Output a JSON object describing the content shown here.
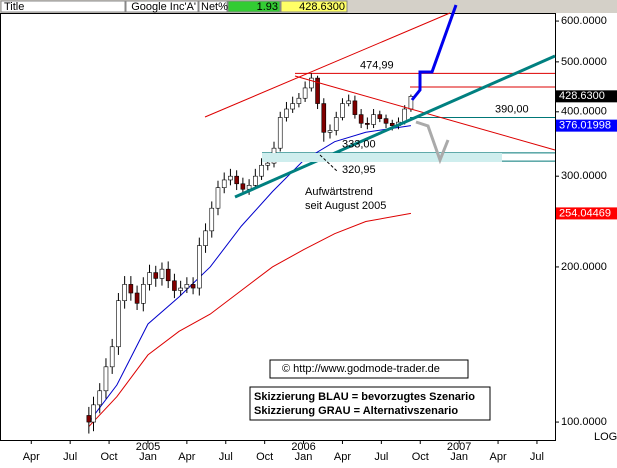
{
  "header": {
    "title": "Title",
    "symbol": "Google Inc'A'",
    "change_label": "Net%",
    "change": 1.93,
    "last": {
      "value": 428.63,
      "label": "428.6300"
    }
  },
  "chart_data": {
    "type": "candlestick",
    "log_scale": true,
    "x": [
      2004.62,
      2004.65,
      2004.69,
      2004.73,
      2004.77,
      2004.81,
      2004.85,
      2004.89,
      2004.93,
      2004.97,
      2005.01,
      2005.05,
      2005.09,
      2005.13,
      2005.17,
      2005.21,
      2005.25,
      2005.29,
      2005.33,
      2005.37,
      2005.41,
      2005.45,
      2005.49,
      2005.53,
      2005.57,
      2005.61,
      2005.65,
      2005.69,
      2005.73,
      2005.77,
      2005.81,
      2005.85,
      2005.89,
      2005.93,
      2005.97,
      2006.01,
      2006.05,
      2006.09,
      2006.13,
      2006.17,
      2006.21,
      2006.25,
      2006.29,
      2006.33,
      2006.37,
      2006.41,
      2006.45,
      2006.49,
      2006.53,
      2006.57,
      2006.61,
      2006.65,
      2006.69
    ],
    "open": [
      103,
      100,
      108,
      115,
      128,
      140,
      172,
      185,
      178,
      170,
      185,
      195,
      190,
      198,
      188,
      180,
      182,
      185,
      182,
      220,
      235,
      260,
      285,
      295,
      300,
      290,
      283,
      288,
      300,
      315,
      318,
      340,
      390,
      405,
      415,
      425,
      445,
      465,
      415,
      365,
      368,
      390,
      415,
      420,
      395,
      380,
      378,
      395,
      388,
      380,
      376,
      382,
      405
    ],
    "high": [
      107,
      112,
      119,
      133,
      145,
      178,
      192,
      192,
      184,
      191,
      202,
      201,
      204,
      205,
      194,
      188,
      191,
      191,
      228,
      243,
      268,
      294,
      305,
      310,
      308,
      298,
      296,
      310,
      325,
      328,
      350,
      400,
      418,
      428,
      435,
      458,
      475,
      470,
      425,
      378,
      400,
      425,
      432,
      430,
      405,
      390,
      405,
      402,
      395,
      386,
      390,
      412,
      432
    ],
    "low": [
      95,
      96,
      104,
      111,
      124,
      135,
      166,
      172,
      165,
      164,
      180,
      183,
      184,
      182,
      174,
      176,
      178,
      177,
      176,
      213,
      228,
      252,
      278,
      288,
      282,
      278,
      276,
      283,
      295,
      308,
      312,
      335,
      383,
      398,
      408,
      418,
      438,
      405,
      350,
      355,
      360,
      385,
      410,
      388,
      372,
      370,
      372,
      382,
      372,
      368,
      370,
      378,
      400
    ],
    "close": [
      100,
      108,
      115,
      128,
      140,
      172,
      185,
      178,
      170,
      185,
      195,
      190,
      198,
      188,
      180,
      182,
      185,
      182,
      220,
      235,
      260,
      285,
      295,
      300,
      290,
      283,
      288,
      300,
      315,
      318,
      340,
      390,
      405,
      415,
      425,
      445,
      465,
      415,
      365,
      368,
      390,
      415,
      420,
      395,
      380,
      378,
      395,
      388,
      380,
      376,
      382,
      405,
      428.63
    ],
    "up_color": "#ffffff",
    "down_color": "#800000",
    "series": [
      {
        "color": "#0000cc",
        "x": [
          2004.62,
          2004.8,
          2005.0,
          2005.2,
          2005.4,
          2005.6,
          2005.8,
          2006.0,
          2006.2,
          2006.4,
          2006.69
        ],
        "values": [
          100,
          118,
          155,
          175,
          200,
          240,
          280,
          322,
          350,
          365,
          376.02
        ],
        "value_labels": [
          null,
          null,
          null,
          null,
          null,
          null,
          null,
          null,
          null,
          null,
          "376.01998"
        ],
        "tag_color": "#0000ff"
      },
      {
        "color": "#dd0000",
        "x": [
          2004.62,
          2004.8,
          2005.0,
          2005.2,
          2005.4,
          2005.6,
          2005.8,
          2006.0,
          2006.2,
          2006.4,
          2006.69
        ],
        "values": [
          98,
          112,
          135,
          150,
          162,
          180,
          200,
          216,
          232,
          245,
          254.04
        ],
        "value_labels": [
          null,
          null,
          null,
          null,
          null,
          null,
          null,
          null,
          null,
          null,
          "254.04469"
        ],
        "tag_color": "#ff0000"
      }
    ],
    "levels": [
      {
        "value": 474.99,
        "label": "474,99",
        "color": "#dd0000"
      },
      {
        "value": 390,
        "label": "390,00",
        "color": "#007777"
      },
      {
        "value": 333,
        "label": "333,00",
        "color": "#007777"
      },
      {
        "value": 320.95,
        "label": "320,95",
        "color": "#007777"
      }
    ],
    "xlim": [
      2004.049,
      2007.616
    ],
    "xticks": [
      {
        "value": 2004.25,
        "label": "Apr"
      },
      {
        "value": 2004.5,
        "label": "Jul"
      },
      {
        "value": 2004.75,
        "label": "Oct"
      },
      {
        "value": 2005,
        "label": "Jan"
      },
      {
        "value": 2005.25,
        "label": "Apr"
      },
      {
        "value": 2005.5,
        "label": "Jul"
      },
      {
        "value": 2005.75,
        "label": "Oct"
      },
      {
        "value": 2006,
        "label": "Jan"
      },
      {
        "value": 2006.25,
        "label": "Apr"
      },
      {
        "value": 2006.5,
        "label": "Jul"
      },
      {
        "value": 2006.75,
        "label": "Oct"
      },
      {
        "value": 2007,
        "label": "Jan"
      },
      {
        "value": 2007.25,
        "label": "Apr"
      },
      {
        "value": 2007.5,
        "label": "Jul"
      }
    ],
    "year_ticks": [
      2005,
      2006,
      2007
    ],
    "ylim": [
      92.3,
      622
    ],
    "yticks": [
      {
        "value": 100,
        "label": "100.0000"
      },
      {
        "value": 200,
        "label": "200.0000"
      },
      {
        "value": 300,
        "label": "300.0000"
      },
      {
        "value": 400,
        "label": "400.0000"
      },
      {
        "value": 500,
        "label": "500.0000"
      },
      {
        "value": 600,
        "label": "600.0000"
      }
    ],
    "scale_label": "LOG",
    "annotations": {
      "trend": "Aufwärtstrend",
      "trend_since": "seit August 2005",
      "copyright": "© http://www.godmode-trader.de",
      "scenario_blue": "Skizzierung BLAU = bevorzugtes Szenario",
      "scenario_grey": "Skizzierung GRAU = Alternativszenario"
    }
  }
}
